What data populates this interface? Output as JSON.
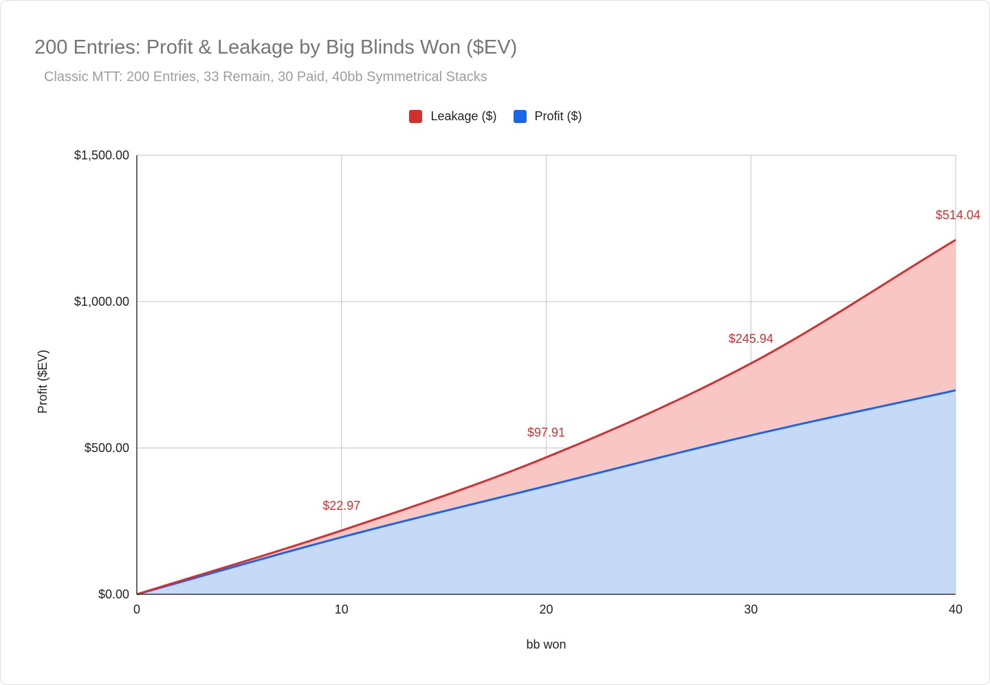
{
  "chart_data": {
    "type": "area",
    "title": "200 Entries: Profit & Leakage by Big Blinds Won ($EV)",
    "subtitle": "Classic MTT: 200 Entries, 33 Remain, 30 Paid, 40bb Symmetrical Stacks",
    "xlabel": "bb won",
    "ylabel": "Profit ($EV)",
    "xlim": [
      0,
      40
    ],
    "ylim": [
      0,
      1500
    ],
    "x_ticks": [
      0,
      10,
      20,
      30,
      40
    ],
    "x_tick_labels": [
      "0",
      "10",
      "20",
      "30",
      "40"
    ],
    "y_ticks": [
      0,
      500,
      1000,
      1500
    ],
    "y_tick_labels": [
      "$0.00",
      "$500.00",
      "$1,000.00",
      "$1,500.00"
    ],
    "stacked": true,
    "grid": true,
    "legend": "top",
    "x": [
      0,
      10,
      20,
      30,
      40
    ],
    "series": [
      {
        "name": "Leakage ($)",
        "color": "#d32f2f",
        "fill": "#f8c6c3",
        "values": [
          0,
          22.97,
          97.91,
          245.94,
          514.04
        ],
        "data_labels": [
          "",
          "$22.97",
          "$97.91",
          "$245.94",
          "$514.04"
        ]
      },
      {
        "name": "Profit ($)",
        "color": "#1a66e8",
        "fill": "#c6d9f7",
        "values": [
          0,
          195,
          370,
          543,
          697
        ],
        "data_labels": [
          "",
          "",
          "",
          "",
          ""
        ]
      }
    ]
  }
}
